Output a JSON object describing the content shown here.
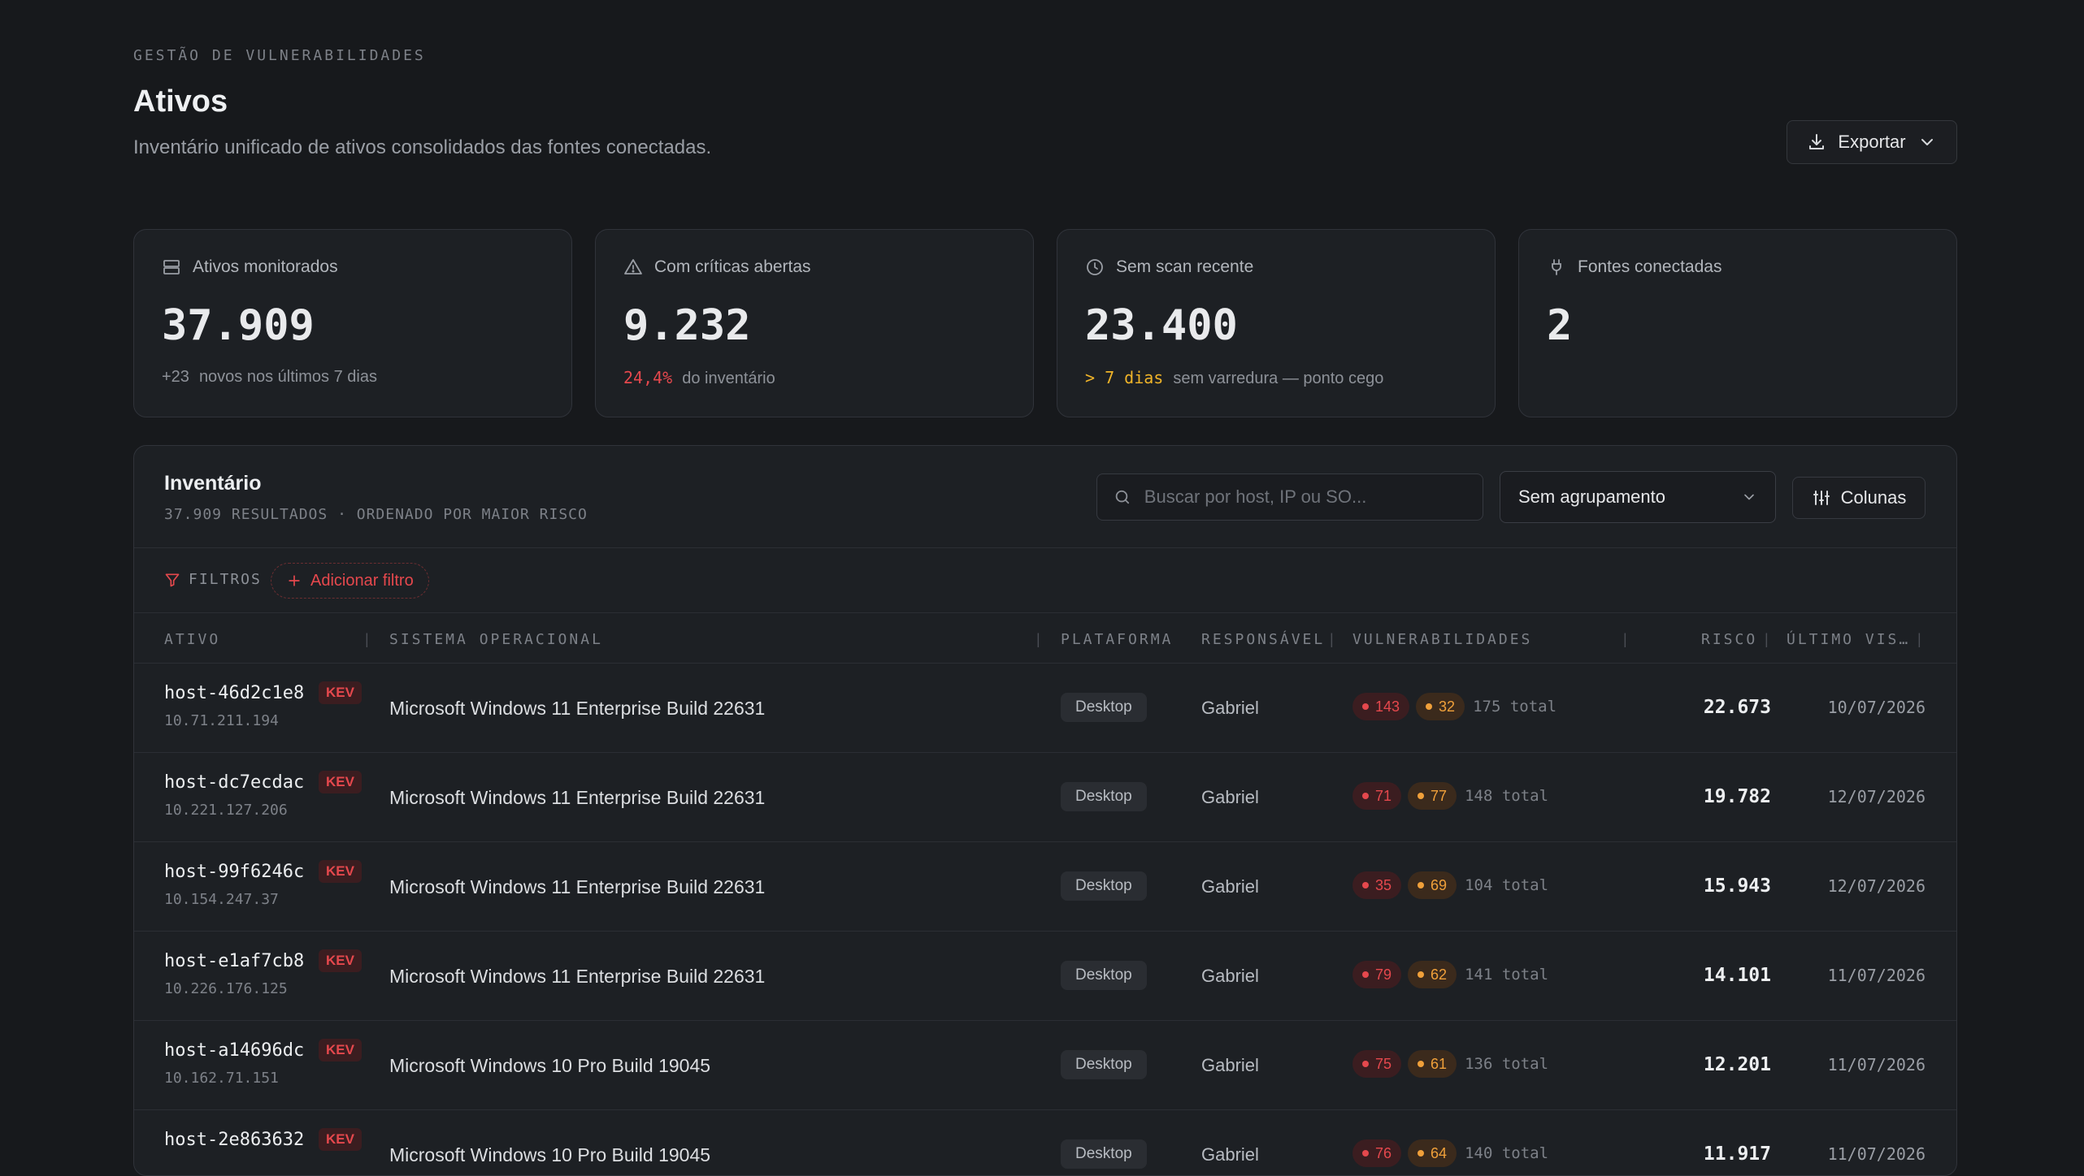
{
  "header": {
    "eyebrow": "GESTÃO DE VULNERABILIDADES",
    "title": "Ativos",
    "subtitle": "Inventário unificado de ativos consolidados das fontes conectadas.",
    "export_label": "Exportar"
  },
  "cards": [
    {
      "icon": "server-icon",
      "label": "Ativos monitorados",
      "value": "37.909",
      "foot_highlight": "+23",
      "foot_text": "novos nos últimos 7 dias"
    },
    {
      "icon": "alert-triangle-icon",
      "label": "Com críticas abertas",
      "value": "9.232",
      "foot_highlight": "24,4%",
      "foot_text": "do inventário"
    },
    {
      "icon": "clock-icon",
      "label": "Sem scan recente",
      "value": "23.400",
      "foot_highlight": "> 7 dias",
      "foot_text": "sem varredura — ponto cego"
    },
    {
      "icon": "plug-icon",
      "label": "Fontes conectadas",
      "value": "2",
      "foot_highlight": "",
      "foot_text": ""
    }
  ],
  "inventory": {
    "title": "Inventário",
    "subtitle": "37.909 RESULTADOS · ORDENADO POR MAIOR RISCO",
    "search_placeholder": "Buscar por host, IP ou SO...",
    "grouping_value": "Sem agrupamento",
    "columns_label": "Colunas",
    "filters_label": "FILTROS",
    "add_filter_label": "Adicionar filtro",
    "columns": {
      "asset": "ATIVO",
      "os": "SISTEMA OPERACIONAL",
      "platform": "PLATAFORMA",
      "owner": "RESPONSÁVEL",
      "vulns": "VULNERABILIDADES",
      "risk": "RISCO",
      "last_seen": "ÚLTIMO VIS…"
    },
    "rows": [
      {
        "host": "host-46d2c1e8",
        "ip": "10.71.211.194",
        "badge": "KEV",
        "os": "Microsoft Windows 11 Enterprise Build 22631",
        "platform": "Desktop",
        "owner": "Gabriel",
        "critical": "143",
        "high": "32",
        "total": "175 total",
        "risk": "22.673",
        "last_seen": "10/07/2026"
      },
      {
        "host": "host-dc7ecdac",
        "ip": "10.221.127.206",
        "badge": "KEV",
        "os": "Microsoft Windows 11 Enterprise Build 22631",
        "platform": "Desktop",
        "owner": "Gabriel",
        "critical": "71",
        "high": "77",
        "total": "148 total",
        "risk": "19.782",
        "last_seen": "12/07/2026"
      },
      {
        "host": "host-99f6246c",
        "ip": "10.154.247.37",
        "badge": "KEV",
        "os": "Microsoft Windows 11 Enterprise Build 22631",
        "platform": "Desktop",
        "owner": "Gabriel",
        "critical": "35",
        "high": "69",
        "total": "104 total",
        "risk": "15.943",
        "last_seen": "12/07/2026"
      },
      {
        "host": "host-e1af7cb8",
        "ip": "10.226.176.125",
        "badge": "KEV",
        "os": "Microsoft Windows 11 Enterprise Build 22631",
        "platform": "Desktop",
        "owner": "Gabriel",
        "critical": "79",
        "high": "62",
        "total": "141 total",
        "risk": "14.101",
        "last_seen": "11/07/2026"
      },
      {
        "host": "host-a14696dc",
        "ip": "10.162.71.151",
        "badge": "KEV",
        "os": "Microsoft Windows 10 Pro Build 19045",
        "platform": "Desktop",
        "owner": "Gabriel",
        "critical": "75",
        "high": "61",
        "total": "136 total",
        "risk": "12.201",
        "last_seen": "11/07/2026"
      },
      {
        "host": "host-2e863632",
        "ip": "",
        "badge": "KEV",
        "os": "Microsoft Windows 10 Pro Build 19045",
        "platform": "Desktop",
        "owner": "Gabriel",
        "critical": "76",
        "high": "64",
        "total": "140 total",
        "risk": "11.917",
        "last_seen": "11/07/2026"
      }
    ]
  },
  "colors": {
    "background": "#17191c",
    "critical": "#e5484d",
    "high": "#f0a03a",
    "warning": "#f0b429"
  }
}
